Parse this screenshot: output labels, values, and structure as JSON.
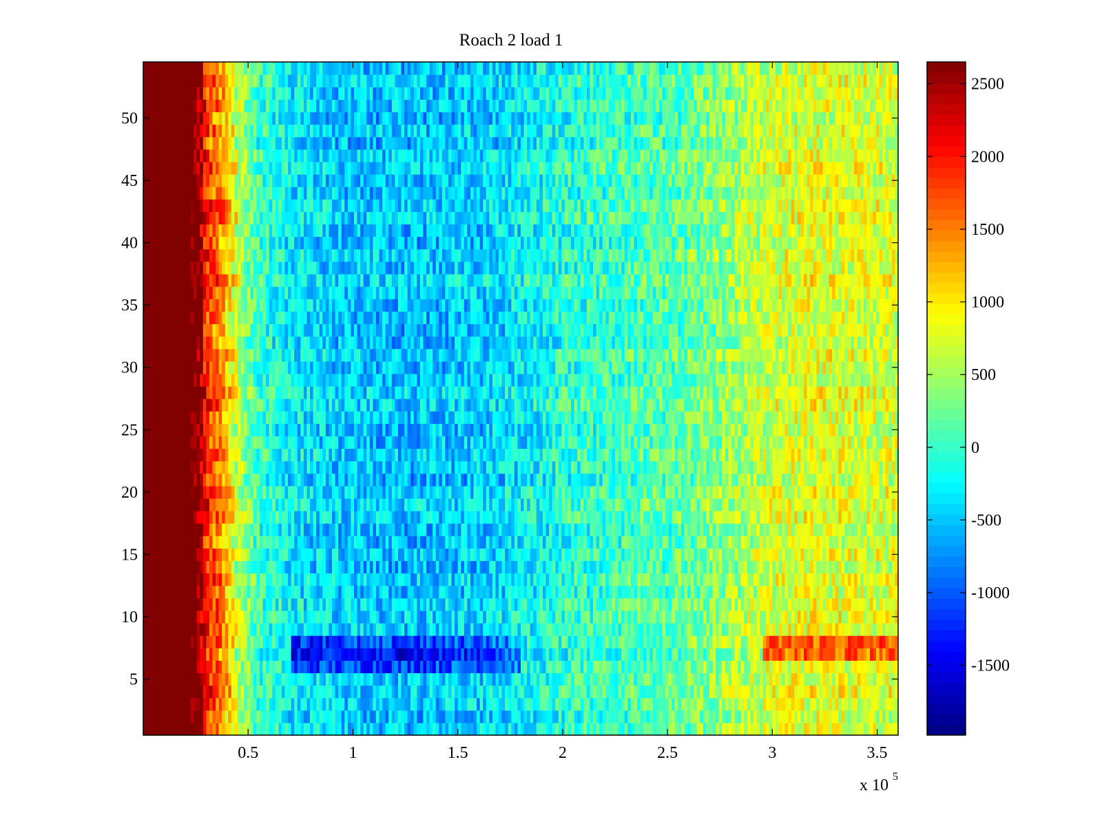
{
  "chart_data": {
    "type": "heatmap",
    "title": "Roach 2 load 1",
    "xlabel": "",
    "ylabel": "",
    "x_multiplier_label": {
      "base": "x 10",
      "exponent": "5"
    },
    "xlim": [
      0,
      3.6
    ],
    "ylim": [
      0.5,
      54.5
    ],
    "x_ticks": [
      {
        "value": 0.5,
        "label": "0.5"
      },
      {
        "value": 1,
        "label": "1"
      },
      {
        "value": 1.5,
        "label": "1.5"
      },
      {
        "value": 2,
        "label": "2"
      },
      {
        "value": 2.5,
        "label": "2.5"
      },
      {
        "value": 3,
        "label": "3"
      },
      {
        "value": 3.5,
        "label": "3.5"
      }
    ],
    "y_ticks": [
      {
        "value": 5,
        "label": "5"
      },
      {
        "value": 10,
        "label": "10"
      },
      {
        "value": 15,
        "label": "15"
      },
      {
        "value": 20,
        "label": "20"
      },
      {
        "value": 25,
        "label": "25"
      },
      {
        "value": 30,
        "label": "30"
      },
      {
        "value": 35,
        "label": "35"
      },
      {
        "value": 40,
        "label": "40"
      },
      {
        "value": 45,
        "label": "45"
      },
      {
        "value": 50,
        "label": "50"
      }
    ],
    "colorbar": {
      "colormap": "jet",
      "clim": [
        -1980,
        2650
      ],
      "ticks": [
        {
          "value": 2500,
          "label": "2500"
        },
        {
          "value": 2000,
          "label": "2000"
        },
        {
          "value": 1500,
          "label": "1500"
        },
        {
          "value": 1000,
          "label": "1000"
        },
        {
          "value": 500,
          "label": "500"
        },
        {
          "value": 0,
          "label": "0"
        },
        {
          "value": -500,
          "label": "-500"
        },
        {
          "value": -1000,
          "label": "-1000"
        },
        {
          "value": -1500,
          "label": "-1500"
        }
      ]
    },
    "rows": 54,
    "column_value_profile": {
      "x": [
        0,
        0.25,
        0.3,
        0.38,
        0.45,
        0.55,
        0.7,
        1.0,
        1.3,
        1.6,
        1.8,
        2.0,
        2.3,
        2.6,
        2.8,
        3.0,
        3.2,
        3.4,
        3.6
      ],
      "values": [
        2650,
        2650,
        1900,
        1400,
        600,
        0,
        -300,
        -500,
        -520,
        -450,
        -300,
        -100,
        50,
        200,
        450,
        700,
        800,
        750,
        700
      ]
    },
    "notable_rows": [
      {
        "row": 7,
        "description_values": {
          "x": [
            0.7,
            1.0,
            1.4,
            1.7,
            3.0,
            3.3,
            3.6
          ],
          "values": [
            -1400,
            -1300,
            -1300,
            -1000,
            1600,
            1700,
            1600
          ]
        }
      },
      {
        "row": 8,
        "description_values": {
          "x": [
            0.7,
            1.0,
            1.4,
            1.7,
            3.0,
            3.3,
            3.6
          ],
          "values": [
            -1300,
            -1200,
            -1200,
            -900,
            1500,
            1600,
            1600
          ]
        }
      },
      {
        "row": 6,
        "description_values": {
          "x": [
            0.7,
            1.0,
            1.4,
            1.7
          ],
          "values": [
            -1200,
            -1100,
            -1100,
            -800
          ]
        }
      }
    ],
    "grid": false,
    "legend": "none"
  }
}
